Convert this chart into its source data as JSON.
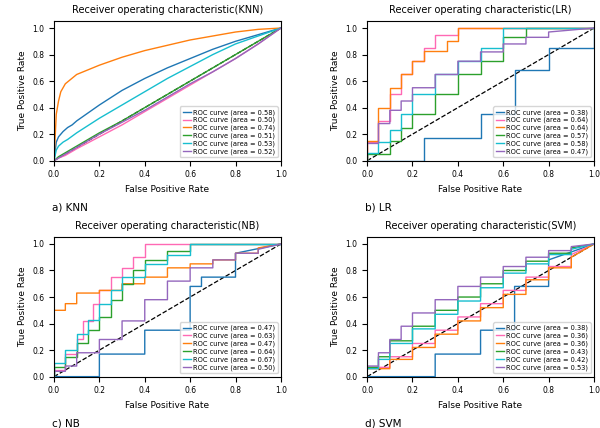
{
  "title_knn": "Receiver operating characteristic(KNN)",
  "title_lr": "Receiver operating characteristic(LR)",
  "title_nb": "Receiver operating characteristic(NB)",
  "title_svm": "Receiver operating characteristic(SVM)",
  "label_a": "a) KNN",
  "label_b": "b) LR",
  "label_c": "c) NB",
  "label_d": "d) SVM",
  "xlabel": "False Positive Rate",
  "ylabel": "True Positive Rate",
  "colors": [
    "#1f77b4",
    "#ff69b4",
    "#ff7f0e",
    "#2ca02c",
    "#17becf",
    "#9467bd"
  ],
  "knn": {
    "areas": [
      0.58,
      0.5,
      0.74,
      0.51,
      0.53,
      0.52
    ],
    "curves": [
      {
        "fpr": [
          0.0,
          0.01,
          0.02,
          0.04,
          0.06,
          0.08,
          0.1,
          0.15,
          0.2,
          0.3,
          0.4,
          0.5,
          0.6,
          0.7,
          0.8,
          0.9,
          1.0
        ],
        "tpr": [
          0.0,
          0.14,
          0.18,
          0.22,
          0.25,
          0.27,
          0.3,
          0.36,
          0.42,
          0.53,
          0.62,
          0.7,
          0.77,
          0.84,
          0.9,
          0.95,
          1.0
        ]
      },
      {
        "fpr": [
          0.0,
          0.02,
          0.05,
          0.1,
          0.2,
          0.3,
          0.4,
          0.5,
          0.6,
          0.7,
          0.8,
          0.9,
          1.0
        ],
        "tpr": [
          0.0,
          0.02,
          0.04,
          0.09,
          0.18,
          0.27,
          0.37,
          0.47,
          0.57,
          0.67,
          0.77,
          0.88,
          1.0
        ]
      },
      {
        "fpr": [
          0.0,
          0.01,
          0.02,
          0.03,
          0.05,
          0.1,
          0.2,
          0.3,
          0.4,
          0.5,
          0.6,
          0.7,
          0.8,
          0.9,
          1.0
        ],
        "tpr": [
          0.0,
          0.35,
          0.45,
          0.52,
          0.58,
          0.65,
          0.72,
          0.78,
          0.83,
          0.87,
          0.91,
          0.94,
          0.97,
          0.99,
          1.0
        ]
      },
      {
        "fpr": [
          0.0,
          0.02,
          0.05,
          0.1,
          0.2,
          0.3,
          0.4,
          0.5,
          0.6,
          0.7,
          0.8,
          0.9,
          1.0
        ],
        "tpr": [
          0.0,
          0.03,
          0.06,
          0.11,
          0.21,
          0.3,
          0.4,
          0.5,
          0.6,
          0.7,
          0.8,
          0.9,
          1.0
        ]
      },
      {
        "fpr": [
          0.0,
          0.01,
          0.02,
          0.04,
          0.06,
          0.1,
          0.2,
          0.3,
          0.4,
          0.5,
          0.6,
          0.7,
          0.8,
          0.9,
          1.0
        ],
        "tpr": [
          0.0,
          0.08,
          0.11,
          0.14,
          0.16,
          0.21,
          0.32,
          0.42,
          0.52,
          0.62,
          0.71,
          0.8,
          0.88,
          0.94,
          1.0
        ]
      },
      {
        "fpr": [
          0.0,
          0.02,
          0.05,
          0.1,
          0.2,
          0.3,
          0.4,
          0.5,
          0.6,
          0.7,
          0.8,
          0.9,
          1.0
        ],
        "tpr": [
          0.0,
          0.02,
          0.05,
          0.1,
          0.2,
          0.29,
          0.38,
          0.48,
          0.58,
          0.67,
          0.77,
          0.88,
          1.0
        ]
      }
    ]
  },
  "lr": {
    "areas": [
      0.38,
      0.64,
      0.64,
      0.57,
      0.58,
      0.47
    ],
    "curves": [
      {
        "fpr": [
          0.0,
          0.0,
          0.25,
          0.25,
          0.5,
          0.5,
          0.6,
          0.6,
          0.65,
          0.65,
          0.8,
          0.8,
          1.0,
          1.0
        ],
        "tpr": [
          0.0,
          0.0,
          0.0,
          0.17,
          0.17,
          0.35,
          0.35,
          0.35,
          0.35,
          0.68,
          0.68,
          0.85,
          0.85,
          1.0
        ]
      },
      {
        "fpr": [
          0.0,
          0.0,
          0.05,
          0.05,
          0.1,
          0.1,
          0.15,
          0.15,
          0.2,
          0.2,
          0.25,
          0.25,
          0.3,
          0.3,
          0.4,
          0.4,
          1.0,
          1.0
        ],
        "tpr": [
          0.0,
          0.14,
          0.14,
          0.3,
          0.3,
          0.5,
          0.5,
          0.65,
          0.65,
          0.75,
          0.75,
          0.85,
          0.85,
          0.95,
          0.95,
          1.0,
          1.0,
          1.0
        ]
      },
      {
        "fpr": [
          0.0,
          0.0,
          0.05,
          0.05,
          0.1,
          0.1,
          0.15,
          0.15,
          0.2,
          0.2,
          0.25,
          0.25,
          0.35,
          0.35,
          0.4,
          0.4,
          1.0
        ],
        "tpr": [
          0.0,
          0.15,
          0.15,
          0.4,
          0.4,
          0.55,
          0.55,
          0.65,
          0.65,
          0.75,
          0.75,
          0.83,
          0.83,
          0.9,
          0.9,
          1.0,
          1.0
        ]
      },
      {
        "fpr": [
          0.0,
          0.0,
          0.1,
          0.1,
          0.15,
          0.15,
          0.2,
          0.2,
          0.3,
          0.3,
          0.4,
          0.4,
          0.5,
          0.5,
          0.6,
          0.6,
          0.7,
          0.7,
          1.0
        ],
        "tpr": [
          0.0,
          0.05,
          0.05,
          0.15,
          0.15,
          0.25,
          0.25,
          0.35,
          0.35,
          0.5,
          0.5,
          0.65,
          0.65,
          0.75,
          0.75,
          0.93,
          0.93,
          1.0,
          1.0
        ]
      },
      {
        "fpr": [
          0.0,
          0.0,
          0.05,
          0.05,
          0.1,
          0.1,
          0.15,
          0.15,
          0.2,
          0.2,
          0.3,
          0.3,
          0.4,
          0.4,
          0.5,
          0.5,
          0.6,
          0.6,
          0.65,
          0.65,
          1.0
        ],
        "tpr": [
          0.0,
          0.06,
          0.06,
          0.14,
          0.14,
          0.23,
          0.23,
          0.35,
          0.35,
          0.5,
          0.5,
          0.65,
          0.65,
          0.75,
          0.75,
          0.85,
          0.85,
          1.0,
          1.0,
          1.0,
          1.0
        ]
      },
      {
        "fpr": [
          0.0,
          0.0,
          0.05,
          0.05,
          0.1,
          0.1,
          0.15,
          0.15,
          0.2,
          0.2,
          0.3,
          0.3,
          0.4,
          0.4,
          0.5,
          0.5,
          0.6,
          0.6,
          0.7,
          0.7,
          0.8,
          0.8,
          1.0
        ],
        "tpr": [
          0.0,
          0.13,
          0.13,
          0.28,
          0.28,
          0.38,
          0.38,
          0.45,
          0.45,
          0.55,
          0.55,
          0.65,
          0.65,
          0.75,
          0.75,
          0.82,
          0.82,
          0.88,
          0.88,
          0.93,
          0.93,
          0.97,
          1.0
        ]
      }
    ]
  },
  "nb": {
    "areas": [
      0.47,
      0.63,
      0.47,
      0.64,
      0.67,
      0.5
    ],
    "curves": [
      {
        "fpr": [
          0.0,
          0.0,
          0.2,
          0.2,
          0.4,
          0.4,
          0.6,
          0.6,
          0.65,
          0.65,
          0.7,
          0.7,
          0.8,
          0.8,
          1.0
        ],
        "tpr": [
          0.0,
          0.0,
          0.0,
          0.17,
          0.17,
          0.35,
          0.35,
          0.68,
          0.68,
          0.75,
          0.75,
          0.75,
          0.75,
          0.93,
          1.0
        ]
      },
      {
        "fpr": [
          0.0,
          0.0,
          0.05,
          0.05,
          0.1,
          0.1,
          0.13,
          0.13,
          0.17,
          0.17,
          0.2,
          0.2,
          0.25,
          0.25,
          0.3,
          0.3,
          0.35,
          0.35,
          0.4,
          0.4,
          1.0
        ],
        "tpr": [
          0.0,
          0.05,
          0.05,
          0.17,
          0.17,
          0.28,
          0.28,
          0.42,
          0.42,
          0.55,
          0.55,
          0.65,
          0.65,
          0.75,
          0.75,
          0.82,
          0.82,
          0.9,
          0.9,
          1.0,
          1.0
        ]
      },
      {
        "fpr": [
          0.0,
          0.0,
          0.05,
          0.05,
          0.1,
          0.1,
          0.2,
          0.2,
          0.3,
          0.3,
          0.4,
          0.4,
          0.5,
          0.5,
          0.6,
          0.6,
          0.7,
          0.7,
          0.8,
          0.8,
          0.9,
          0.9,
          1.0
        ],
        "tpr": [
          0.0,
          0.5,
          0.5,
          0.55,
          0.55,
          0.63,
          0.63,
          0.65,
          0.65,
          0.7,
          0.7,
          0.75,
          0.75,
          0.82,
          0.82,
          0.85,
          0.85,
          0.88,
          0.88,
          0.93,
          0.93,
          0.97,
          1.0
        ]
      },
      {
        "fpr": [
          0.0,
          0.0,
          0.05,
          0.05,
          0.1,
          0.1,
          0.15,
          0.15,
          0.2,
          0.2,
          0.25,
          0.25,
          0.3,
          0.3,
          0.35,
          0.35,
          0.4,
          0.4,
          0.5,
          0.5,
          0.6,
          0.6,
          1.0
        ],
        "tpr": [
          0.0,
          0.07,
          0.07,
          0.15,
          0.15,
          0.25,
          0.25,
          0.35,
          0.35,
          0.45,
          0.45,
          0.58,
          0.58,
          0.7,
          0.7,
          0.8,
          0.8,
          0.88,
          0.88,
          0.95,
          0.95,
          1.0,
          1.0
        ]
      },
      {
        "fpr": [
          0.0,
          0.0,
          0.05,
          0.05,
          0.1,
          0.1,
          0.15,
          0.15,
          0.2,
          0.2,
          0.25,
          0.25,
          0.3,
          0.3,
          0.4,
          0.4,
          0.5,
          0.5,
          0.6,
          0.6,
          1.0
        ],
        "tpr": [
          0.0,
          0.1,
          0.1,
          0.2,
          0.2,
          0.32,
          0.32,
          0.43,
          0.43,
          0.55,
          0.55,
          0.65,
          0.65,
          0.75,
          0.75,
          0.85,
          0.85,
          0.92,
          0.92,
          1.0,
          1.0
        ]
      },
      {
        "fpr": [
          0.0,
          0.0,
          0.05,
          0.05,
          0.1,
          0.1,
          0.2,
          0.2,
          0.3,
          0.3,
          0.4,
          0.4,
          0.5,
          0.5,
          0.6,
          0.6,
          0.7,
          0.7,
          0.8,
          0.8,
          0.9,
          0.9,
          1.0
        ],
        "tpr": [
          0.0,
          0.04,
          0.04,
          0.08,
          0.08,
          0.18,
          0.18,
          0.28,
          0.28,
          0.42,
          0.42,
          0.58,
          0.58,
          0.72,
          0.72,
          0.82,
          0.82,
          0.88,
          0.88,
          0.93,
          0.93,
          0.96,
          1.0
        ]
      }
    ]
  },
  "svm": {
    "areas": [
      0.38,
      0.36,
      0.36,
      0.43,
      0.42,
      0.53
    ],
    "curves": [
      {
        "fpr": [
          0.0,
          0.0,
          0.3,
          0.3,
          0.5,
          0.5,
          0.65,
          0.65,
          0.7,
          0.7,
          0.8,
          0.8,
          1.0
        ],
        "tpr": [
          0.0,
          0.0,
          0.0,
          0.17,
          0.17,
          0.35,
          0.35,
          0.68,
          0.68,
          0.68,
          0.68,
          0.88,
          1.0
        ]
      },
      {
        "fpr": [
          0.0,
          0.0,
          0.1,
          0.1,
          0.2,
          0.2,
          0.3,
          0.3,
          0.4,
          0.4,
          0.5,
          0.5,
          0.6,
          0.6,
          0.7,
          0.7,
          0.8,
          0.8,
          0.9,
          0.9,
          1.0
        ],
        "tpr": [
          0.0,
          0.07,
          0.07,
          0.15,
          0.15,
          0.25,
          0.25,
          0.35,
          0.35,
          0.45,
          0.45,
          0.55,
          0.55,
          0.65,
          0.65,
          0.75,
          0.75,
          0.83,
          0.83,
          0.92,
          1.0
        ]
      },
      {
        "fpr": [
          0.0,
          0.0,
          0.1,
          0.1,
          0.2,
          0.2,
          0.3,
          0.3,
          0.4,
          0.4,
          0.5,
          0.5,
          0.6,
          0.6,
          0.7,
          0.7,
          0.8,
          0.8,
          0.9,
          0.9,
          1.0
        ],
        "tpr": [
          0.0,
          0.06,
          0.06,
          0.13,
          0.13,
          0.22,
          0.22,
          0.32,
          0.32,
          0.42,
          0.42,
          0.52,
          0.52,
          0.62,
          0.62,
          0.73,
          0.73,
          0.82,
          0.82,
          0.9,
          1.0
        ]
      },
      {
        "fpr": [
          0.0,
          0.0,
          0.05,
          0.05,
          0.1,
          0.1,
          0.2,
          0.2,
          0.3,
          0.3,
          0.4,
          0.4,
          0.5,
          0.5,
          0.6,
          0.6,
          0.7,
          0.7,
          0.8,
          0.8,
          0.9,
          0.9,
          1.0
        ],
        "tpr": [
          0.0,
          0.07,
          0.07,
          0.15,
          0.15,
          0.27,
          0.27,
          0.38,
          0.38,
          0.5,
          0.5,
          0.6,
          0.6,
          0.7,
          0.7,
          0.8,
          0.8,
          0.87,
          0.87,
          0.93,
          0.93,
          0.97,
          1.0
        ]
      },
      {
        "fpr": [
          0.0,
          0.0,
          0.05,
          0.05,
          0.1,
          0.1,
          0.2,
          0.2,
          0.3,
          0.3,
          0.4,
          0.4,
          0.5,
          0.5,
          0.6,
          0.6,
          0.7,
          0.7,
          0.8,
          0.8,
          0.9,
          0.9,
          1.0
        ],
        "tpr": [
          0.0,
          0.06,
          0.06,
          0.13,
          0.13,
          0.25,
          0.25,
          0.36,
          0.36,
          0.47,
          0.47,
          0.57,
          0.57,
          0.67,
          0.67,
          0.78,
          0.78,
          0.85,
          0.85,
          0.92,
          0.92,
          0.96,
          1.0
        ]
      },
      {
        "fpr": [
          0.0,
          0.0,
          0.05,
          0.05,
          0.1,
          0.1,
          0.15,
          0.15,
          0.2,
          0.2,
          0.3,
          0.3,
          0.4,
          0.4,
          0.5,
          0.5,
          0.6,
          0.6,
          0.7,
          0.7,
          0.8,
          0.8,
          0.9,
          0.9,
          1.0
        ],
        "tpr": [
          0.0,
          0.08,
          0.08,
          0.18,
          0.18,
          0.28,
          0.28,
          0.38,
          0.38,
          0.48,
          0.48,
          0.58,
          0.58,
          0.68,
          0.68,
          0.75,
          0.75,
          0.83,
          0.83,
          0.9,
          0.9,
          0.95,
          0.95,
          0.98,
          1.0
        ]
      }
    ]
  }
}
